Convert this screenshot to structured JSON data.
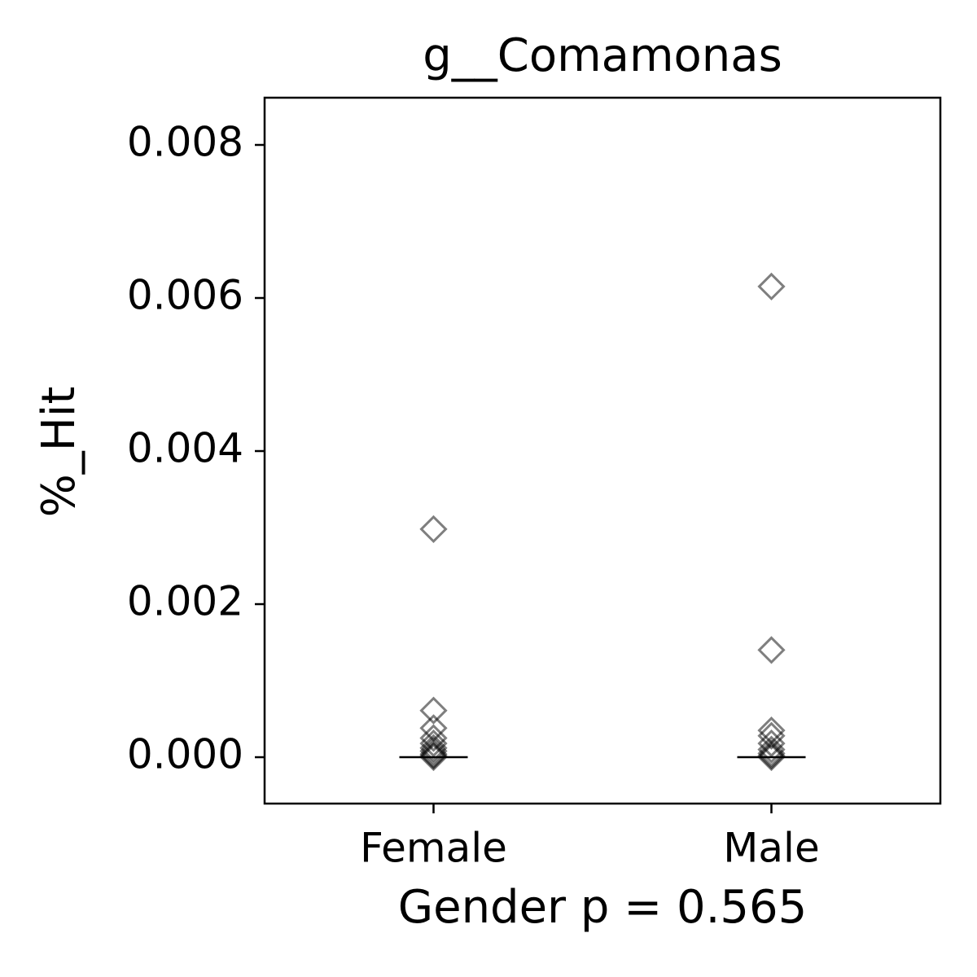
{
  "chart_data": {
    "type": "strip",
    "title": "g__Comamonas",
    "x_label": "Gender p = 0.565",
    "y_label": "%_Hit",
    "categories": [
      "Female",
      "Male"
    ],
    "points": [
      [
        0.00298,
        0.00061,
        0.00038,
        0.00025,
        0.00018,
        0.00012,
        8e-05,
        4e-05,
        2e-05,
        0
      ],
      [
        0.00615,
        0.0014,
        0.00035,
        0.00028,
        0.00018,
        0.0001,
        5e-05,
        2e-05,
        0
      ]
    ],
    "medians": [
      0,
      0
    ],
    "color": "#000000",
    "xlim": [
      -0.5,
      1.5
    ],
    "ylim": [
      -0.000606,
      0.008617
    ],
    "yticks": [
      {
        "value": 0,
        "label": "0.000"
      },
      {
        "value": 0.002,
        "label": "0.002"
      },
      {
        "value": 0.004,
        "label": "0.004"
      },
      {
        "value": 0.006,
        "label": "0.006"
      },
      {
        "value": 0.008,
        "label": "0.008"
      }
    ],
    "grid": false
  }
}
